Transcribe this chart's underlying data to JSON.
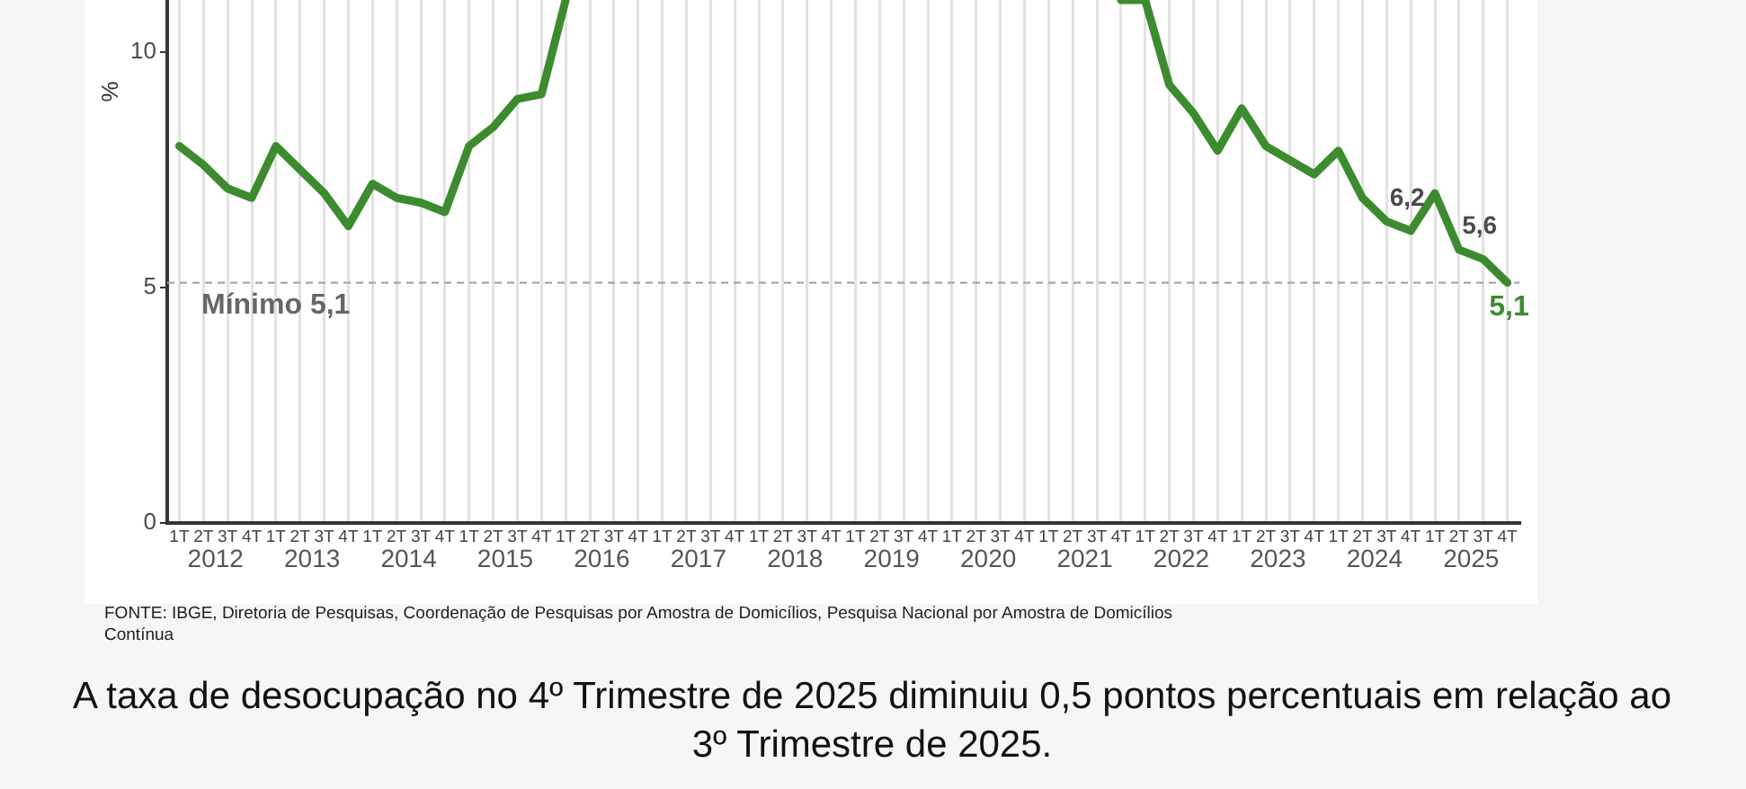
{
  "chart_data": {
    "type": "line",
    "categories": [
      "1T",
      "2T",
      "3T",
      "4T",
      "1T",
      "2T",
      "3T",
      "4T",
      "1T",
      "2T",
      "3T",
      "4T",
      "1T",
      "2T",
      "3T",
      "4T",
      "1T",
      "2T",
      "3T",
      "4T",
      "1T",
      "2T",
      "3T",
      "4T",
      "1T",
      "2T",
      "3T",
      "4T",
      "1T",
      "2T",
      "3T",
      "4T",
      "1T",
      "2T",
      "3T",
      "4T",
      "1T",
      "2T",
      "3T",
      "4T",
      "1T",
      "2T",
      "3T",
      "4T",
      "1T",
      "2T",
      "3T",
      "4T",
      "1T",
      "2T",
      "3T",
      "4T",
      "1T",
      "2T",
      "3T",
      "4T"
    ],
    "values": [
      8.0,
      7.6,
      7.1,
      6.9,
      8.0,
      7.5,
      7.0,
      6.3,
      7.2,
      6.9,
      6.8,
      6.6,
      8.0,
      8.4,
      9.0,
      9.1,
      11.1,
      null,
      null,
      null,
      null,
      null,
      null,
      null,
      null,
      null,
      null,
      null,
      null,
      null,
      null,
      null,
      null,
      null,
      null,
      null,
      null,
      null,
      null,
      11.1,
      11.1,
      9.3,
      8.7,
      7.9,
      8.8,
      8.0,
      7.7,
      7.4,
      7.9,
      6.9,
      6.4,
      6.2,
      7.0,
      5.8,
      5.6,
      5.1
    ],
    "value_labels": [
      null,
      null,
      null,
      null,
      null,
      null,
      null,
      null,
      null,
      null,
      null,
      null,
      null,
      null,
      null,
      null,
      null,
      null,
      null,
      null,
      null,
      null,
      null,
      null,
      null,
      null,
      null,
      null,
      null,
      null,
      null,
      null,
      null,
      null,
      null,
      null,
      null,
      null,
      null,
      null,
      null,
      null,
      null,
      null,
      null,
      null,
      null,
      null,
      null,
      null,
      null,
      "6,2",
      null,
      null,
      "5,6",
      "5,1"
    ],
    "color": "#3d8b2f",
    "ylabel": "%",
    "ylim": [
      0,
      11.1
    ],
    "yticks": [
      0,
      5,
      10
    ],
    "grid": "x",
    "ref_lines": [
      {
        "axis": "y",
        "value": 5.1,
        "label": "Mínimo 5,1",
        "color": "#a6a6a6",
        "line_style": "dashed"
      }
    ],
    "annotations": [
      "2012",
      "2013",
      "2014",
      "2015",
      "2016",
      "2017",
      "2018",
      "2019",
      "2020",
      "2021",
      "2022",
      "2023",
      "2024",
      "2025",
      "FONTE: IBGE, Diretoria de Pesquisas, Coordenação de Pesquisas por Amostra de Domicílios, Pesquisa Nacional por Amostra de Domicílios Contínua",
      "A taxa de desocupação no 4º Trimestre de 2025 diminuiu 0,5 pontos percentuais em relação ao 3º Trimestre de 2025."
    ]
  }
}
